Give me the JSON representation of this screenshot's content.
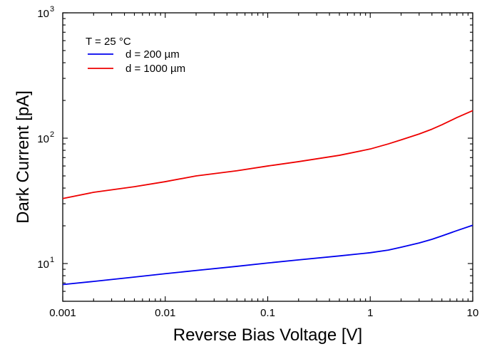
{
  "chart_data": {
    "type": "line",
    "title": "",
    "xlabel": "Reverse Bias Voltage [V]",
    "ylabel": "Dark Current [pA]",
    "xscale": "log",
    "yscale": "log",
    "xlim": [
      0.001,
      10
    ],
    "ylim": [
      5,
      1000
    ],
    "xticks": [
      {
        "value": 0.001,
        "label": "0.001"
      },
      {
        "value": 0.01,
        "label": "0.01"
      },
      {
        "value": 0.1,
        "label": "0.1"
      },
      {
        "value": 1,
        "label": "1"
      },
      {
        "value": 10,
        "label": "10"
      }
    ],
    "yticks": [
      {
        "value": 10,
        "base": "10",
        "exp": "1"
      },
      {
        "value": 100,
        "base": "10",
        "exp": "2"
      },
      {
        "value": 1000,
        "base": "10",
        "exp": "3"
      }
    ],
    "legend": {
      "position": "top-left",
      "header": "T = 25 °C"
    },
    "grid": false,
    "series": [
      {
        "name": "d = 200 µm",
        "color": "#0000ee",
        "x": [
          0.001,
          0.002,
          0.005,
          0.01,
          0.02,
          0.05,
          0.1,
          0.2,
          0.5,
          1,
          1.5,
          2,
          3,
          4,
          5,
          7,
          10
        ],
        "y": [
          6.8,
          7.2,
          7.8,
          8.3,
          8.8,
          9.5,
          10.1,
          10.7,
          11.5,
          12.2,
          12.8,
          13.5,
          14.6,
          15.6,
          16.6,
          18.3,
          20.2
        ]
      },
      {
        "name": "d = 1000 µm",
        "color": "#ee0000",
        "x": [
          0.001,
          0.002,
          0.005,
          0.01,
          0.02,
          0.05,
          0.1,
          0.2,
          0.5,
          1,
          1.5,
          2,
          3,
          4,
          5,
          7,
          10
        ],
        "y": [
          33,
          37,
          41,
          45,
          50,
          55,
          60,
          65,
          73,
          82,
          90,
          97,
          108,
          118,
          128,
          146,
          166
        ]
      }
    ]
  }
}
